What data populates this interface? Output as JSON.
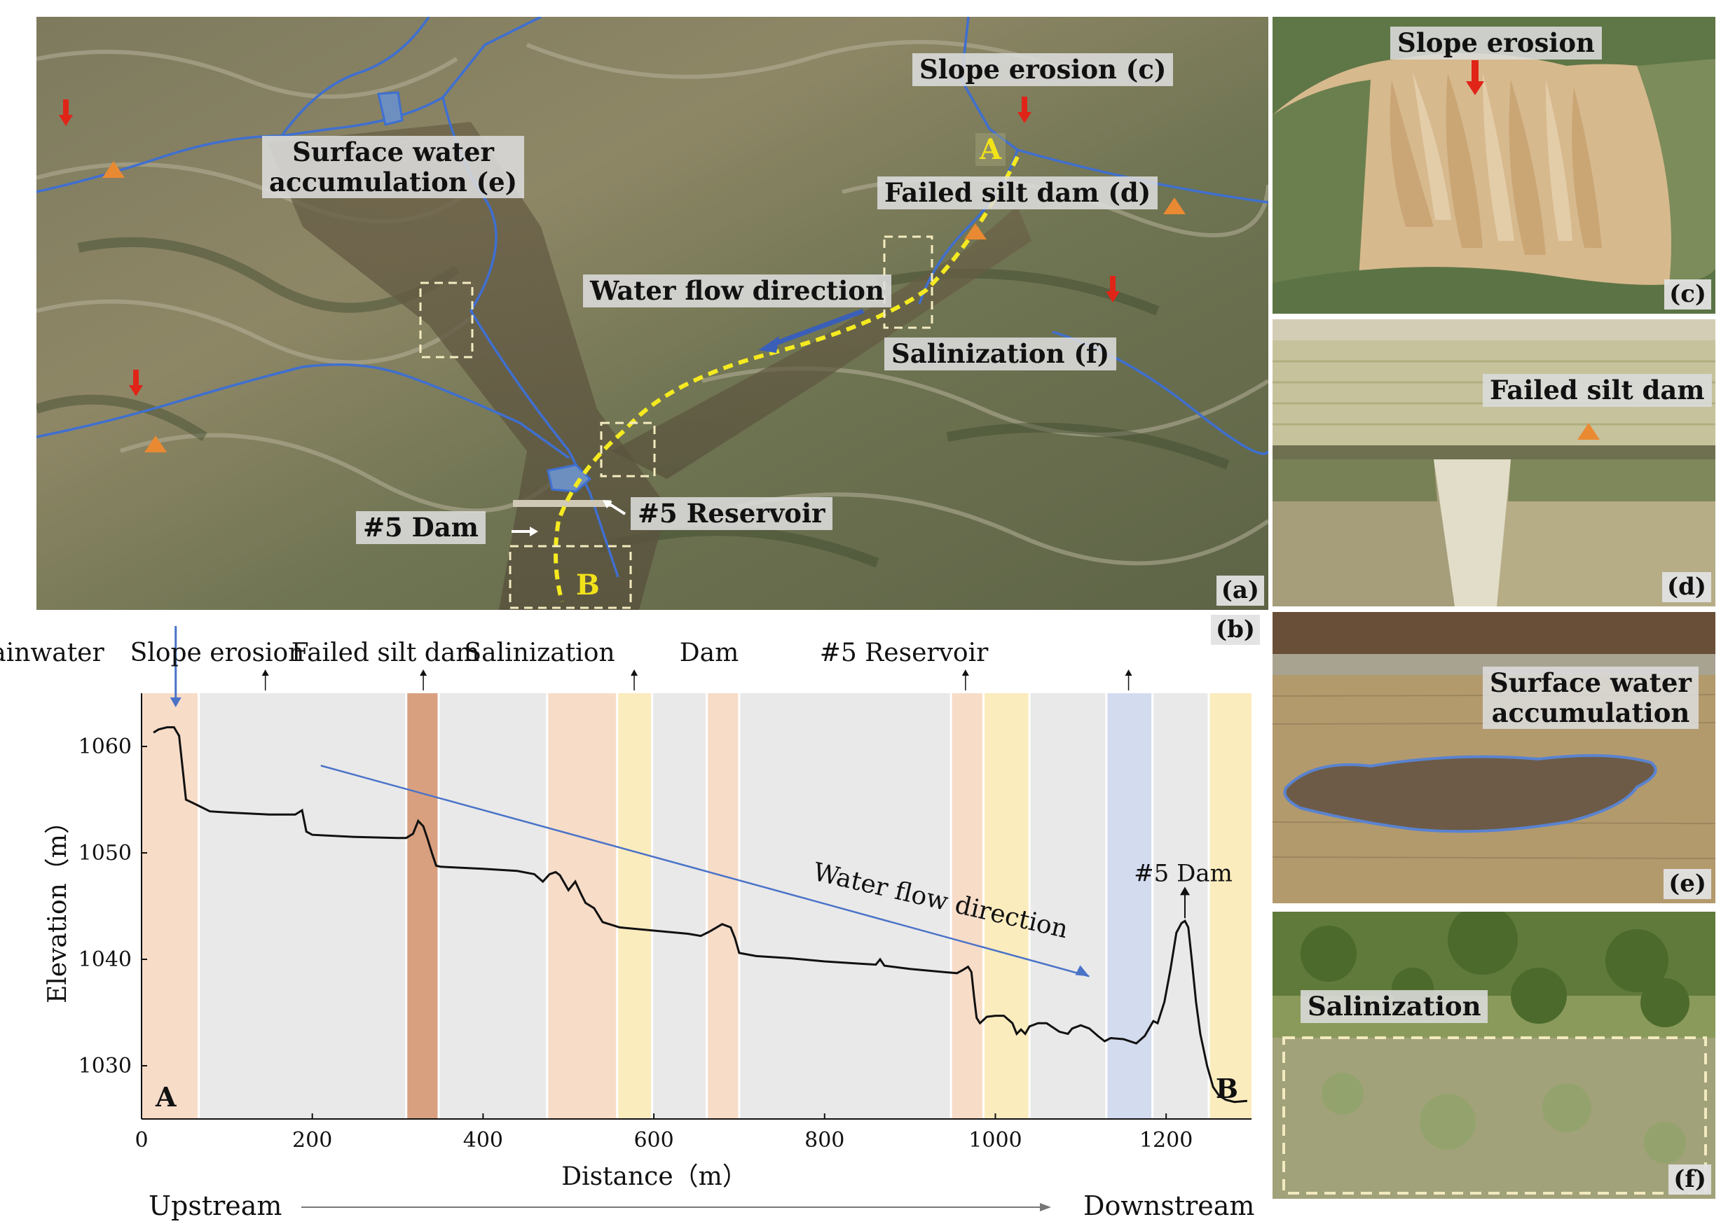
{
  "panel_a": {
    "label": "(a)",
    "annotations": {
      "slope_erosion": "Slope erosion (c)",
      "surface_water_1": "Surface water",
      "surface_water_2": "accumulation (e)",
      "failed_silt_dam": "Failed silt dam (d)",
      "water_flow": "Water flow direction",
      "salinization": "Salinization (f)",
      "dam5": "#5 Dam",
      "reservoir5": "#5 Reservoir"
    },
    "point_a": "A",
    "point_b": "B"
  },
  "panel_b": {
    "label": "(b)",
    "top_labels": {
      "rainwater": "Rainwater",
      "slope_erosion": "Slope erosion",
      "failed_silt_dam": "Failed silt dam",
      "salinization": "Salinization",
      "dam": "Dam",
      "reservoir": "#5 Reservoir"
    },
    "inplot_labels": {
      "water_flow": "Water flow direction",
      "dam5": "#5 Dam",
      "a": "A",
      "b": "B"
    },
    "bottom": {
      "upstream": "Upstream",
      "downstream": "Downstream"
    },
    "colors": {
      "erosion": "#f7dcc8",
      "failed_dam": "#d9a07f",
      "salinization": "#fbecbe",
      "reservoir": "#d3dbef",
      "background": "#e9e9e9",
      "flow_arrow": "#4a73c8",
      "profile_line": "#111111"
    }
  },
  "chart_data": {
    "type": "line",
    "xlabel": "Distance（m）",
    "ylabel": "Elevation（m）",
    "xlim": [
      0,
      1300
    ],
    "ylim": [
      1025,
      1065
    ],
    "xticks": [
      0,
      200,
      400,
      600,
      800,
      1000,
      1200
    ],
    "yticks": [
      1030,
      1040,
      1050,
      1060
    ],
    "bands": [
      {
        "x0": 0,
        "x1": 67,
        "kind": "erosion"
      },
      {
        "x0": 67,
        "x1": 310,
        "kind": "background"
      },
      {
        "x0": 310,
        "x1": 348,
        "kind": "failed_dam"
      },
      {
        "x0": 348,
        "x1": 475,
        "kind": "background"
      },
      {
        "x0": 475,
        "x1": 557,
        "kind": "erosion"
      },
      {
        "x0": 557,
        "x1": 598,
        "kind": "salinization"
      },
      {
        "x0": 598,
        "x1": 662,
        "kind": "background"
      },
      {
        "x0": 662,
        "x1": 700,
        "kind": "erosion"
      },
      {
        "x0": 700,
        "x1": 948,
        "kind": "background"
      },
      {
        "x0": 948,
        "x1": 986,
        "kind": "erosion"
      },
      {
        "x0": 986,
        "x1": 1040,
        "kind": "salinization"
      },
      {
        "x0": 1040,
        "x1": 1130,
        "kind": "background"
      },
      {
        "x0": 1130,
        "x1": 1184,
        "kind": "reservoir"
      },
      {
        "x0": 1184,
        "x1": 1250,
        "kind": "background"
      },
      {
        "x0": 1250,
        "x1": 1300,
        "kind": "salinization"
      }
    ],
    "series": [
      {
        "x": [
          14,
          20,
          30,
          38,
          44,
          48,
          52,
          60,
          70,
          80,
          100,
          150,
          180,
          188,
          193,
          200,
          250,
          300,
          310,
          318,
          324,
          330,
          335,
          340,
          345,
          350,
          400,
          440,
          460,
          470,
          478,
          485,
          490,
          500,
          508,
          515,
          520,
          530,
          540,
          560,
          600,
          640,
          655,
          665,
          680,
          690,
          695,
          700,
          720,
          760,
          800,
          840,
          860,
          865,
          870,
          900,
          940,
          955,
          962,
          968,
          972,
          975,
          978,
          982,
          990,
          1000,
          1010,
          1020,
          1025,
          1030,
          1035,
          1040,
          1050,
          1060,
          1075,
          1085,
          1090,
          1100,
          1110,
          1120,
          1128,
          1135,
          1150,
          1165,
          1175,
          1185,
          1190,
          1198,
          1205,
          1212,
          1218,
          1222,
          1226,
          1230,
          1235,
          1240,
          1248,
          1255,
          1262,
          1270,
          1280,
          1295
        ],
        "y": [
          1061.3,
          1061.6,
          1061.8,
          1061.8,
          1061.0,
          1058.0,
          1055.0,
          1054.7,
          1054.3,
          1053.9,
          1053.8,
          1053.6,
          1053.6,
          1054.0,
          1052.0,
          1051.7,
          1051.5,
          1051.4,
          1051.4,
          1051.8,
          1053.0,
          1052.5,
          1051.3,
          1050.0,
          1048.8,
          1048.7,
          1048.5,
          1048.3,
          1048.0,
          1047.3,
          1048.0,
          1048.2,
          1047.9,
          1046.5,
          1047.3,
          1046.1,
          1045.3,
          1044.8,
          1043.5,
          1043.0,
          1042.7,
          1042.4,
          1042.2,
          1042.6,
          1043.3,
          1043.0,
          1042.0,
          1040.6,
          1040.3,
          1040.1,
          1039.8,
          1039.6,
          1039.5,
          1040.0,
          1039.4,
          1039.1,
          1038.8,
          1038.7,
          1039.0,
          1039.3,
          1038.8,
          1036.5,
          1034.5,
          1034.0,
          1034.6,
          1034.7,
          1034.7,
          1034.0,
          1033.0,
          1033.4,
          1033.0,
          1033.7,
          1034.0,
          1034.0,
          1033.2,
          1033.0,
          1033.5,
          1033.8,
          1033.5,
          1032.8,
          1032.3,
          1032.6,
          1032.5,
          1032.1,
          1032.8,
          1034.2,
          1034.0,
          1036.0,
          1039.0,
          1042.5,
          1043.4,
          1043.6,
          1043.0,
          1040.0,
          1036.0,
          1033.0,
          1030.0,
          1028.0,
          1027.2,
          1026.8,
          1026.6,
          1026.7
        ]
      }
    ]
  },
  "panel_c": {
    "title": "Slope erosion",
    "label": "(c)"
  },
  "panel_d": {
    "title": "Failed silt dam",
    "label": "(d)"
  },
  "panel_e": {
    "title_1": "Surface water",
    "title_2": "accumulation",
    "label": "(e)"
  },
  "panel_f": {
    "title": "Salinization",
    "label": "(f)"
  }
}
